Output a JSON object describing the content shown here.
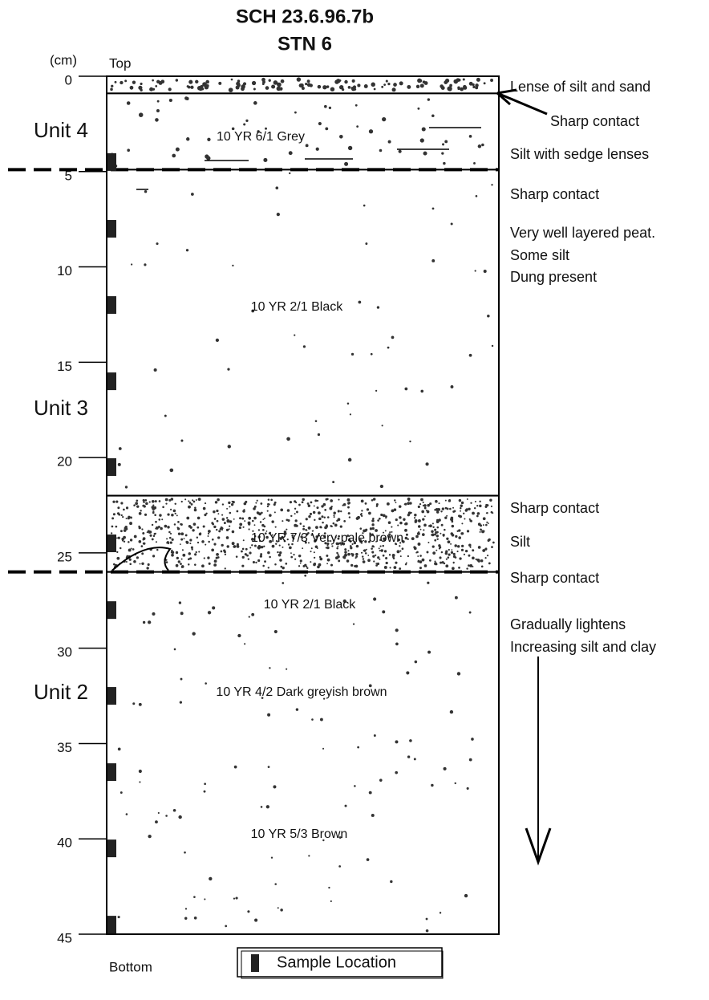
{
  "title": [
    "SCH 23.6.96.7b",
    "STN 6"
  ],
  "depth_scale": {
    "unit": "(cm)",
    "top_label": "Top",
    "bottom_label": "Bottom",
    "range": [
      0,
      45
    ],
    "ticks": [
      0,
      5,
      10,
      15,
      20,
      25,
      30,
      35,
      40,
      45
    ]
  },
  "layers": [
    {
      "top": 0,
      "bottom": 0.9
    },
    {
      "top": 0.9,
      "bottom": 4.9
    },
    {
      "top": 4.9,
      "bottom": 22
    },
    {
      "top": 22,
      "bottom": 26
    },
    {
      "top": 26,
      "bottom": 45
    }
  ],
  "units": [
    "Unit 4",
    "Unit 3",
    "Unit 2"
  ],
  "layer_labels": [
    "10 YR 6/1 Grey",
    "10 YR 2/1 Black",
    "10 YR 7/3 Very pale brown",
    "10 YR 2/1 Black",
    "10 YR 4/2 Dark greyish brown",
    "10 YR 5/3 Brown"
  ],
  "annotations": [
    "Lense of silt and sand",
    "Sharp contact",
    "Silt with sedge lenses",
    "Sharp contact",
    "Very well layered peat.",
    "Some silt",
    "Dung present",
    "Sharp contact",
    "Silt",
    "Sharp contact",
    "Gradually lightens",
    "Increasing silt and clay"
  ],
  "sample_depths": [
    4.5,
    8,
    12,
    16,
    20.5,
    24.5,
    28,
    32.5,
    36.5,
    40.5,
    44.5
  ],
  "legend": "Sample Location"
}
